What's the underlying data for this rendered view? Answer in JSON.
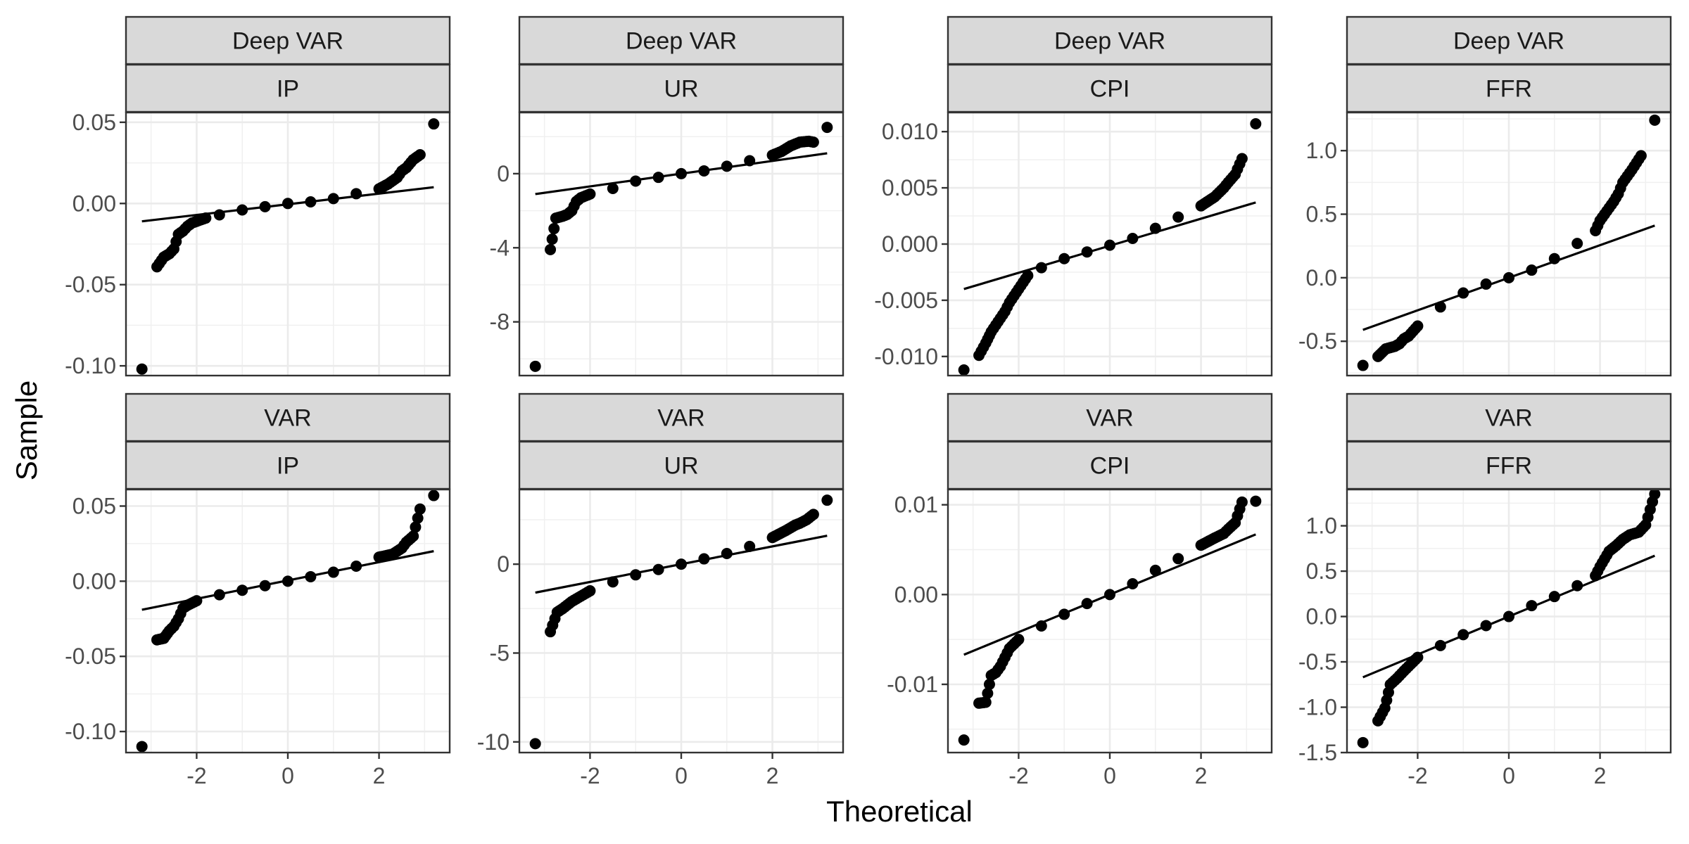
{
  "chart_data": {
    "type": "scatter",
    "subtype": "qq-plot-facets",
    "xlabel": "Theoretical",
    "ylabel": "Sample",
    "grid": true,
    "legend": "none",
    "x_ticks": [
      -2,
      0,
      2
    ],
    "xlim": [
      -3.55,
      3.55
    ],
    "panels": [
      {
        "model": "Deep VAR",
        "variable": "IP",
        "ylim": [
          -0.106,
          0.056
        ],
        "y_ticks": [
          -0.1,
          -0.05,
          0.0,
          0.05
        ],
        "y_tick_labels": [
          "-0.10",
          "-0.05",
          "0.00",
          "0.05"
        ],
        "qq_line": [
          [
            -3.2,
            -0.011
          ],
          [
            3.2,
            0.01
          ]
        ],
        "points": [
          [
            -3.2,
            -0.102
          ],
          [
            -2.87,
            -0.039
          ],
          [
            -2.72,
            -0.033
          ],
          [
            -2.6,
            -0.031
          ],
          [
            -2.5,
            -0.028
          ],
          [
            -2.4,
            -0.019
          ],
          [
            -2.3,
            -0.017
          ],
          [
            -2.2,
            -0.014
          ],
          [
            -2.1,
            -0.012
          ],
          [
            -2.0,
            -0.011
          ],
          [
            -1.8,
            -0.009
          ],
          [
            -1.5,
            -0.007
          ],
          [
            -1.0,
            -0.004
          ],
          [
            -0.5,
            -0.002
          ],
          [
            0.0,
            0.0
          ],
          [
            0.5,
            0.001
          ],
          [
            1.0,
            0.003
          ],
          [
            1.5,
            0.006
          ],
          [
            2.0,
            0.009
          ],
          [
            2.2,
            0.012
          ],
          [
            2.4,
            0.016
          ],
          [
            2.5,
            0.02
          ],
          [
            2.6,
            0.022
          ],
          [
            2.75,
            0.027
          ],
          [
            2.9,
            0.03
          ],
          [
            3.2,
            0.049
          ]
        ]
      },
      {
        "model": "Deep VAR",
        "variable": "UR",
        "ylim": [
          -10.9,
          3.3
        ],
        "y_ticks": [
          -8,
          -4,
          0
        ],
        "y_tick_labels": [
          "-8",
          "-4",
          "0"
        ],
        "qq_line": [
          [
            -3.2,
            -1.1
          ],
          [
            3.2,
            1.1
          ]
        ],
        "points": [
          [
            -3.2,
            -10.4
          ],
          [
            -2.87,
            -4.1
          ],
          [
            -2.75,
            -2.4
          ],
          [
            -2.6,
            -2.3
          ],
          [
            -2.5,
            -2.2
          ],
          [
            -2.4,
            -2.0
          ],
          [
            -2.3,
            -1.5
          ],
          [
            -2.2,
            -1.3
          ],
          [
            -2.0,
            -1.1
          ],
          [
            -1.5,
            -0.8
          ],
          [
            -1.0,
            -0.4
          ],
          [
            -0.5,
            -0.2
          ],
          [
            0.0,
            0.0
          ],
          [
            0.5,
            0.15
          ],
          [
            1.0,
            0.4
          ],
          [
            1.5,
            0.7
          ],
          [
            2.0,
            1.0
          ],
          [
            2.2,
            1.2
          ],
          [
            2.4,
            1.5
          ],
          [
            2.6,
            1.7
          ],
          [
            2.8,
            1.75
          ],
          [
            2.9,
            1.7
          ],
          [
            3.2,
            2.5
          ]
        ]
      },
      {
        "model": "Deep VAR",
        "variable": "CPI",
        "ylim": [
          -0.0117,
          0.0117
        ],
        "y_ticks": [
          -0.01,
          -0.005,
          0.0,
          0.005,
          0.01
        ],
        "y_tick_labels": [
          "-0.010",
          "-0.005",
          "0.000",
          "0.005",
          "0.010"
        ],
        "qq_line": [
          [
            -3.2,
            -0.004
          ],
          [
            3.2,
            0.0037
          ]
        ],
        "points": [
          [
            -3.2,
            -0.0112
          ],
          [
            -2.87,
            -0.0099
          ],
          [
            -2.72,
            -0.0088
          ],
          [
            -2.6,
            -0.0078
          ],
          [
            -2.5,
            -0.0072
          ],
          [
            -2.4,
            -0.0066
          ],
          [
            -2.3,
            -0.006
          ],
          [
            -2.2,
            -0.0052
          ],
          [
            -2.0,
            -0.004
          ],
          [
            -1.8,
            -0.0028
          ],
          [
            -1.5,
            -0.0021
          ],
          [
            -1.0,
            -0.0013
          ],
          [
            -0.5,
            -0.0007
          ],
          [
            0.0,
            -0.0001
          ],
          [
            0.5,
            0.0005
          ],
          [
            1.0,
            0.0014
          ],
          [
            1.5,
            0.0024
          ],
          [
            2.0,
            0.0034
          ],
          [
            2.3,
            0.0042
          ],
          [
            2.5,
            0.005
          ],
          [
            2.6,
            0.0055
          ],
          [
            2.75,
            0.0062
          ],
          [
            2.9,
            0.0076
          ],
          [
            3.2,
            0.0107
          ]
        ]
      },
      {
        "model": "Deep VAR",
        "variable": "FFR",
        "ylim": [
          -0.77,
          1.3
        ],
        "y_ticks": [
          -0.5,
          0.0,
          0.5,
          1.0
        ],
        "y_tick_labels": [
          "-0.5",
          "0.0",
          "0.5",
          "1.0"
        ],
        "qq_line": [
          [
            -3.2,
            -0.41
          ],
          [
            3.2,
            0.41
          ]
        ],
        "points": [
          [
            -3.2,
            -0.69
          ],
          [
            -2.87,
            -0.62
          ],
          [
            -2.7,
            -0.56
          ],
          [
            -2.5,
            -0.54
          ],
          [
            -2.4,
            -0.52
          ],
          [
            -2.3,
            -0.48
          ],
          [
            -2.2,
            -0.46
          ],
          [
            -2.0,
            -0.38
          ],
          [
            -1.5,
            -0.23
          ],
          [
            -1.0,
            -0.12
          ],
          [
            -0.5,
            -0.05
          ],
          [
            0.0,
            0.0
          ],
          [
            0.5,
            0.06
          ],
          [
            1.0,
            0.15
          ],
          [
            1.5,
            0.27
          ],
          [
            1.9,
            0.37
          ],
          [
            2.0,
            0.45
          ],
          [
            2.2,
            0.55
          ],
          [
            2.3,
            0.6
          ],
          [
            2.4,
            0.66
          ],
          [
            2.5,
            0.75
          ],
          [
            2.7,
            0.85
          ],
          [
            2.9,
            0.96
          ],
          [
            3.2,
            1.24
          ]
        ]
      },
      {
        "model": "VAR",
        "variable": "IP",
        "ylim": [
          -0.114,
          0.061
        ],
        "y_ticks": [
          -0.1,
          -0.05,
          0.0,
          0.05
        ],
        "y_tick_labels": [
          "-0.10",
          "-0.05",
          "0.00",
          "0.05"
        ],
        "qq_line": [
          [
            -3.2,
            -0.019
          ],
          [
            3.2,
            0.02
          ]
        ],
        "points": [
          [
            -3.2,
            -0.11
          ],
          [
            -2.87,
            -0.039
          ],
          [
            -2.72,
            -0.038
          ],
          [
            -2.6,
            -0.033
          ],
          [
            -2.5,
            -0.03
          ],
          [
            -2.4,
            -0.025
          ],
          [
            -2.3,
            -0.018
          ],
          [
            -2.2,
            -0.016
          ],
          [
            -2.0,
            -0.013
          ],
          [
            -1.5,
            -0.009
          ],
          [
            -1.0,
            -0.006
          ],
          [
            -0.5,
            -0.003
          ],
          [
            0.0,
            0.0
          ],
          [
            0.5,
            0.003
          ],
          [
            1.0,
            0.006
          ],
          [
            1.5,
            0.01
          ],
          [
            2.0,
            0.016
          ],
          [
            2.3,
            0.018
          ],
          [
            2.5,
            0.022
          ],
          [
            2.6,
            0.026
          ],
          [
            2.75,
            0.03
          ],
          [
            2.9,
            0.048
          ],
          [
            3.2,
            0.057
          ]
        ]
      },
      {
        "model": "VAR",
        "variable": "UR",
        "ylim": [
          -10.6,
          4.2
        ],
        "y_ticks": [
          -10,
          -5,
          0
        ],
        "y_tick_labels": [
          "-10",
          "-5",
          "0"
        ],
        "qq_line": [
          [
            -3.2,
            -1.6
          ],
          [
            3.2,
            1.6
          ]
        ],
        "points": [
          [
            -3.2,
            -10.1
          ],
          [
            -2.87,
            -3.8
          ],
          [
            -2.72,
            -2.7
          ],
          [
            -2.6,
            -2.5
          ],
          [
            -2.5,
            -2.3
          ],
          [
            -2.4,
            -2.1
          ],
          [
            -2.2,
            -1.8
          ],
          [
            -2.0,
            -1.5
          ],
          [
            -1.5,
            -1.0
          ],
          [
            -1.0,
            -0.6
          ],
          [
            -0.5,
            -0.3
          ],
          [
            0.0,
            0.0
          ],
          [
            0.5,
            0.3
          ],
          [
            1.0,
            0.6
          ],
          [
            1.5,
            1.0
          ],
          [
            2.0,
            1.5
          ],
          [
            2.3,
            1.9
          ],
          [
            2.5,
            2.2
          ],
          [
            2.6,
            2.3
          ],
          [
            2.75,
            2.5
          ],
          [
            2.9,
            2.8
          ],
          [
            3.2,
            3.6
          ]
        ]
      },
      {
        "model": "VAR",
        "variable": "CPI",
        "ylim": [
          -0.0176,
          0.0117
        ],
        "y_ticks": [
          -0.01,
          0.0,
          0.01
        ],
        "y_tick_labels": [
          "-0.01",
          "0.00",
          "0.01"
        ],
        "qq_line": [
          [
            -3.2,
            -0.0067
          ],
          [
            3.2,
            0.0067
          ]
        ],
        "points": [
          [
            -3.2,
            -0.0162
          ],
          [
            -2.87,
            -0.0121
          ],
          [
            -2.72,
            -0.012
          ],
          [
            -2.6,
            -0.009
          ],
          [
            -2.5,
            -0.0087
          ],
          [
            -2.4,
            -0.008
          ],
          [
            -2.3,
            -0.007
          ],
          [
            -2.2,
            -0.006
          ],
          [
            -2.0,
            -0.005
          ],
          [
            -1.5,
            -0.0035
          ],
          [
            -1.0,
            -0.0022
          ],
          [
            -0.5,
            -0.001
          ],
          [
            0.0,
            0.0
          ],
          [
            0.5,
            0.0012
          ],
          [
            1.0,
            0.0027
          ],
          [
            1.5,
            0.004
          ],
          [
            2.0,
            0.0055
          ],
          [
            2.3,
            0.0063
          ],
          [
            2.5,
            0.0068
          ],
          [
            2.6,
            0.0073
          ],
          [
            2.75,
            0.008
          ],
          [
            2.9,
            0.0103
          ],
          [
            3.2,
            0.0104
          ]
        ]
      },
      {
        "model": "VAR",
        "variable": "FFR",
        "ylim": [
          -1.5,
          1.4
        ],
        "y_ticks": [
          -1.5,
          -1.0,
          -0.5,
          0.0,
          0.5,
          1.0
        ],
        "y_tick_labels": [
          "-1.5",
          "-1.0",
          "-0.5",
          "0.0",
          "0.5",
          "1.0"
        ],
        "qq_line": [
          [
            -3.2,
            -0.67
          ],
          [
            3.2,
            0.67
          ]
        ],
        "points": [
          [
            -3.2,
            -1.39
          ],
          [
            -2.87,
            -1.15
          ],
          [
            -2.72,
            -1.01
          ],
          [
            -2.6,
            -0.75
          ],
          [
            -2.45,
            -0.68
          ],
          [
            -2.3,
            -0.6
          ],
          [
            -2.2,
            -0.55
          ],
          [
            -2.0,
            -0.45
          ],
          [
            -1.5,
            -0.32
          ],
          [
            -1.0,
            -0.2
          ],
          [
            -0.5,
            -0.1
          ],
          [
            0.0,
            0.0
          ],
          [
            0.5,
            0.12
          ],
          [
            1.0,
            0.22
          ],
          [
            1.5,
            0.34
          ],
          [
            1.9,
            0.45
          ],
          [
            2.0,
            0.55
          ],
          [
            2.2,
            0.72
          ],
          [
            2.35,
            0.78
          ],
          [
            2.5,
            0.85
          ],
          [
            2.65,
            0.9
          ],
          [
            2.85,
            0.93
          ],
          [
            3.0,
            1.01
          ],
          [
            3.2,
            1.35
          ]
        ]
      }
    ]
  }
}
